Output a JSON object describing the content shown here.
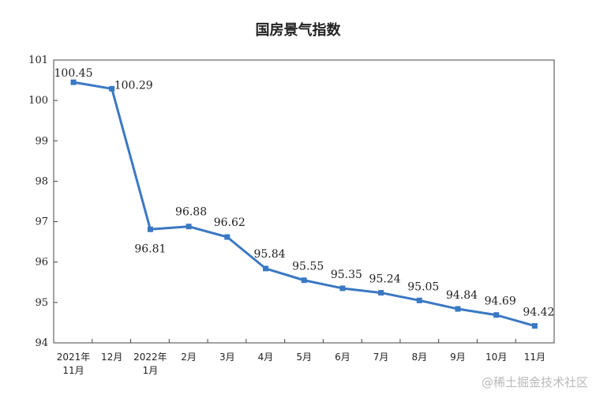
{
  "chart_data": {
    "type": "line",
    "title": "国房景气指数",
    "categories": [
      "2021年\n11月",
      "12月",
      "2022年\n1月",
      "2月",
      "3月",
      "4月",
      "5月",
      "6月",
      "7月",
      "8月",
      "9月",
      "10月",
      "11月"
    ],
    "series": [
      {
        "values": [
          100.45,
          100.29,
          96.81,
          96.88,
          96.62,
          95.84,
          95.55,
          95.35,
          95.24,
          95.05,
          94.84,
          94.69,
          94.42
        ],
        "color": "#3a78c3"
      }
    ],
    "ylim": [
      94,
      101
    ],
    "yticks": [
      94,
      95,
      96,
      97,
      98,
      99,
      100,
      101
    ],
    "grid": false,
    "legend": "none"
  },
  "watermark": "@稀土掘金技术社区"
}
